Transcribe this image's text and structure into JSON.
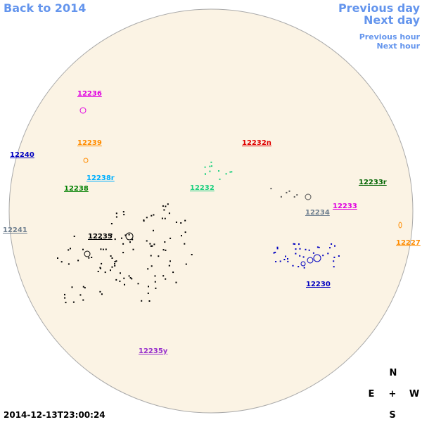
{
  "nav": {
    "back": "Back to 2014",
    "previous_day": "Previous day",
    "next_day": "Next day",
    "previous_hour": "Previous hour",
    "next_hour": "Next hour",
    "color": "#6495ed"
  },
  "regions": [
    {
      "label": "12236",
      "color": "#e000e0"
    },
    {
      "label": "12239",
      "color": "#ff8c00"
    },
    {
      "label": "12240",
      "color": "#0000c0"
    },
    {
      "label": "12238r",
      "color": "#00b0ff"
    },
    {
      "label": "12238",
      "color": "#008000"
    },
    {
      "label": "12232n",
      "color": "#e00000"
    },
    {
      "label": "12232",
      "color": "#20d080"
    },
    {
      "label": "12233r",
      "color": "#006400"
    },
    {
      "label": "12234",
      "color": "#708090"
    },
    {
      "label": "12233",
      "color": "#e000e0"
    },
    {
      "label": "12241",
      "color": "#708090"
    },
    {
      "label": "12235",
      "color": "#000000"
    },
    {
      "label": "12227",
      "color": "#ff8c00"
    },
    {
      "label": "12230",
      "color": "#0000c0"
    },
    {
      "label": "12235y",
      "color": "#9932cc"
    }
  ],
  "compass": {
    "north": "N",
    "east": "E",
    "center": "+",
    "west": "W",
    "south": "S"
  },
  "timestamp": "2014-12-13T23:00:24"
}
